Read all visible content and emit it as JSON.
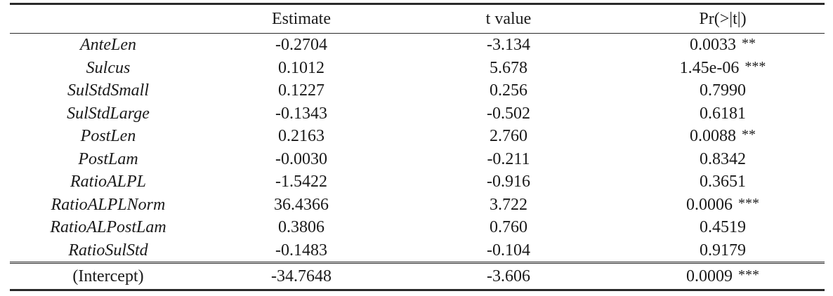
{
  "table": {
    "headers": [
      "",
      "Estimate",
      "t value",
      "Pr(>|t|)"
    ],
    "rows": [
      {
        "name": "AnteLen",
        "estimate": "-0.2704",
        "t_value": "-3.134",
        "p_value": "0.0033",
        "signif": "**"
      },
      {
        "name": "Sulcus",
        "estimate": "0.1012",
        "t_value": "5.678",
        "p_value": "1.45e-06",
        "signif": "***"
      },
      {
        "name": "SulStdSmall",
        "estimate": "0.1227",
        "t_value": "0.256",
        "p_value": "0.7990",
        "signif": ""
      },
      {
        "name": "SulStdLarge",
        "estimate": "-0.1343",
        "t_value": "-0.502",
        "p_value": "0.6181",
        "signif": ""
      },
      {
        "name": "PostLen",
        "estimate": "0.2163",
        "t_value": "2.760",
        "p_value": "0.0088",
        "signif": "**"
      },
      {
        "name": "PostLam",
        "estimate": "-0.0030",
        "t_value": "-0.211",
        "p_value": "0.8342",
        "signif": ""
      },
      {
        "name": "RatioALPL",
        "estimate": "-1.5422",
        "t_value": "-0.916",
        "p_value": "0.3651",
        "signif": ""
      },
      {
        "name": "RatioALPLNorm",
        "estimate": "36.4366",
        "t_value": "3.722",
        "p_value": "0.0006",
        "signif": "***"
      },
      {
        "name": "RatioALPostLam",
        "estimate": "0.3806",
        "t_value": "0.760",
        "p_value": "0.4519",
        "signif": ""
      },
      {
        "name": "RatioSulStd",
        "estimate": "-0.1483",
        "t_value": "-0.104",
        "p_value": "0.9179",
        "signif": ""
      }
    ],
    "intercept": {
      "name": "(Intercept)",
      "estimate": "-34.7648",
      "t_value": "-3.606",
      "p_value": "0.0009",
      "signif": "***"
    }
  }
}
